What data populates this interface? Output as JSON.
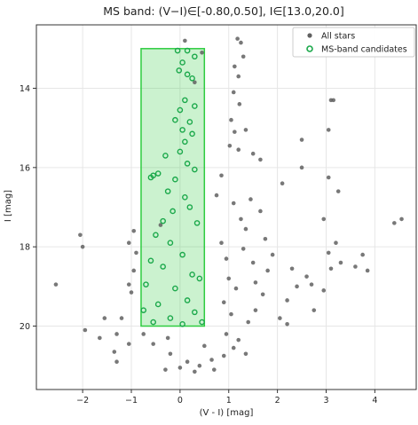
{
  "chart_data": {
    "type": "scatter",
    "title": "MS band: (V−I)∈[-0.80,0.50], I∈[13.0,20.0]",
    "xlabel": "(V - I) [mag]",
    "ylabel": "I [mag]",
    "xlim": [
      -2.95,
      4.85
    ],
    "ylim": [
      21.6,
      12.4
    ],
    "y_inverted": true,
    "grid": true,
    "legend_position": "top-right",
    "x_ticks": [
      "−2",
      "−1",
      "0",
      "1",
      "2",
      "3",
      "4"
    ],
    "x_tick_values": [
      -2,
      -1,
      0,
      1,
      2,
      3,
      4
    ],
    "y_ticks": [
      "14",
      "16",
      "18",
      "20"
    ],
    "y_tick_values": [
      14,
      16,
      18,
      20
    ],
    "selection_box": {
      "x_range": [
        -0.8,
        0.5
      ],
      "y_range": [
        13.0,
        20.0
      ],
      "color": "#2ecc40",
      "fill_opacity": 0.25
    },
    "series": [
      {
        "name": "All stars",
        "marker": "filled-circle",
        "color": "#606060",
        "points": [
          [
            0.1,
            12.8
          ],
          [
            0.45,
            13.1
          ],
          [
            1.18,
            12.75
          ],
          [
            1.25,
            12.85
          ],
          [
            1.3,
            13.2
          ],
          [
            1.12,
            13.45
          ],
          [
            1.2,
            13.7
          ],
          [
            1.1,
            14.1
          ],
          [
            0.3,
            13.85
          ],
          [
            1.22,
            14.4
          ],
          [
            1.05,
            14.8
          ],
          [
            1.12,
            15.1
          ],
          [
            1.35,
            15.05
          ],
          [
            1.02,
            15.45
          ],
          [
            1.2,
            15.55
          ],
          [
            1.5,
            15.65
          ],
          [
            1.65,
            15.8
          ],
          [
            2.5,
            15.3
          ],
          [
            3.05,
            15.05
          ],
          [
            3.1,
            14.3
          ],
          [
            3.15,
            14.3
          ],
          [
            2.5,
            16.0
          ],
          [
            3.05,
            16.25
          ],
          [
            3.25,
            16.6
          ],
          [
            2.1,
            16.4
          ],
          [
            2.95,
            17.3
          ],
          [
            4.4,
            17.4
          ],
          [
            4.55,
            17.3
          ],
          [
            3.2,
            17.9
          ],
          [
            3.05,
            18.15
          ],
          [
            3.1,
            18.55
          ],
          [
            3.3,
            18.4
          ],
          [
            3.6,
            18.5
          ],
          [
            3.75,
            18.2
          ],
          [
            3.85,
            18.6
          ],
          [
            2.7,
            18.95
          ],
          [
            2.95,
            19.1
          ],
          [
            2.4,
            19.0
          ],
          [
            2.2,
            19.35
          ],
          [
            2.75,
            19.6
          ],
          [
            2.2,
            19.95
          ],
          [
            2.05,
            19.8
          ],
          [
            -2.55,
            18.95
          ],
          [
            -2.0,
            18.0
          ],
          [
            -2.05,
            17.7
          ],
          [
            -1.95,
            20.1
          ],
          [
            -1.55,
            19.8
          ],
          [
            -1.65,
            20.3
          ],
          [
            -1.3,
            20.2
          ],
          [
            -1.35,
            20.65
          ],
          [
            -1.3,
            20.9
          ],
          [
            -1.05,
            20.45
          ],
          [
            -1.0,
            19.15
          ],
          [
            -1.05,
            18.95
          ],
          [
            -0.95,
            18.6
          ],
          [
            -0.9,
            18.15
          ],
          [
            -1.05,
            17.9
          ],
          [
            -0.95,
            17.6
          ],
          [
            -0.4,
            17.45
          ],
          [
            1.8,
            18.6
          ],
          [
            1.5,
            18.4
          ],
          [
            1.55,
            18.9
          ],
          [
            1.7,
            19.2
          ],
          [
            1.55,
            19.6
          ],
          [
            1.4,
            19.9
          ],
          [
            1.2,
            20.35
          ],
          [
            0.9,
            20.75
          ],
          [
            0.7,
            21.1
          ],
          [
            0.3,
            21.15
          ],
          [
            0.0,
            21.05
          ],
          [
            -0.3,
            21.1
          ],
          [
            -0.2,
            20.7
          ],
          [
            0.5,
            20.5
          ],
          [
            -0.55,
            20.45
          ],
          [
            -0.75,
            20.2
          ],
          [
            -0.25,
            20.3
          ],
          [
            0.15,
            20.9
          ],
          [
            0.4,
            21.0
          ],
          [
            0.65,
            20.85
          ],
          [
            0.95,
            20.2
          ],
          [
            1.1,
            20.55
          ],
          [
            1.35,
            20.7
          ],
          [
            -1.2,
            19.8
          ],
          [
            1.1,
            16.9
          ],
          [
            1.25,
            17.3
          ],
          [
            1.35,
            17.55
          ],
          [
            0.85,
            17.9
          ],
          [
            0.95,
            18.3
          ],
          [
            1.0,
            18.8
          ],
          [
            1.15,
            19.05
          ],
          [
            0.9,
            19.4
          ],
          [
            1.05,
            19.7
          ],
          [
            1.3,
            18.05
          ],
          [
            0.75,
            16.7
          ],
          [
            0.85,
            16.2
          ],
          [
            1.45,
            16.8
          ],
          [
            1.65,
            17.1
          ],
          [
            1.75,
            17.8
          ],
          [
            1.9,
            18.2
          ],
          [
            2.3,
            18.55
          ],
          [
            2.6,
            18.75
          ]
        ]
      },
      {
        "name": "MS-band candidates",
        "marker": "open-circle",
        "color": "#1aa84a",
        "points": [
          [
            -0.05,
            13.05
          ],
          [
            0.15,
            13.05
          ],
          [
            0.05,
            13.35
          ],
          [
            0.3,
            13.2
          ],
          [
            -0.02,
            13.55
          ],
          [
            0.15,
            13.65
          ],
          [
            0.25,
            13.75
          ],
          [
            0.1,
            14.3
          ],
          [
            0.0,
            14.55
          ],
          [
            0.3,
            14.45
          ],
          [
            -0.1,
            14.8
          ],
          [
            0.2,
            14.85
          ],
          [
            0.05,
            15.05
          ],
          [
            0.25,
            15.15
          ],
          [
            0.1,
            15.35
          ],
          [
            -0.3,
            15.7
          ],
          [
            -0.45,
            16.15
          ],
          [
            -0.55,
            16.2
          ],
          [
            -0.6,
            16.25
          ],
          [
            0.0,
            15.6
          ],
          [
            0.15,
            15.9
          ],
          [
            -0.1,
            16.3
          ],
          [
            0.3,
            16.05
          ],
          [
            -0.25,
            16.6
          ],
          [
            0.1,
            16.75
          ],
          [
            -0.15,
            17.1
          ],
          [
            -0.35,
            17.35
          ],
          [
            -0.5,
            17.7
          ],
          [
            0.2,
            17.0
          ],
          [
            0.35,
            17.4
          ],
          [
            -0.2,
            17.9
          ],
          [
            0.05,
            18.2
          ],
          [
            -0.6,
            18.35
          ],
          [
            -0.35,
            18.5
          ],
          [
            0.25,
            18.7
          ],
          [
            -0.7,
            18.95
          ],
          [
            0.4,
            18.8
          ],
          [
            -0.1,
            19.05
          ],
          [
            0.15,
            19.35
          ],
          [
            -0.45,
            19.45
          ],
          [
            -0.75,
            19.6
          ],
          [
            0.3,
            19.65
          ],
          [
            -0.2,
            19.8
          ],
          [
            0.05,
            19.95
          ],
          [
            0.45,
            19.9
          ],
          [
            -0.55,
            19.9
          ]
        ]
      }
    ]
  }
}
